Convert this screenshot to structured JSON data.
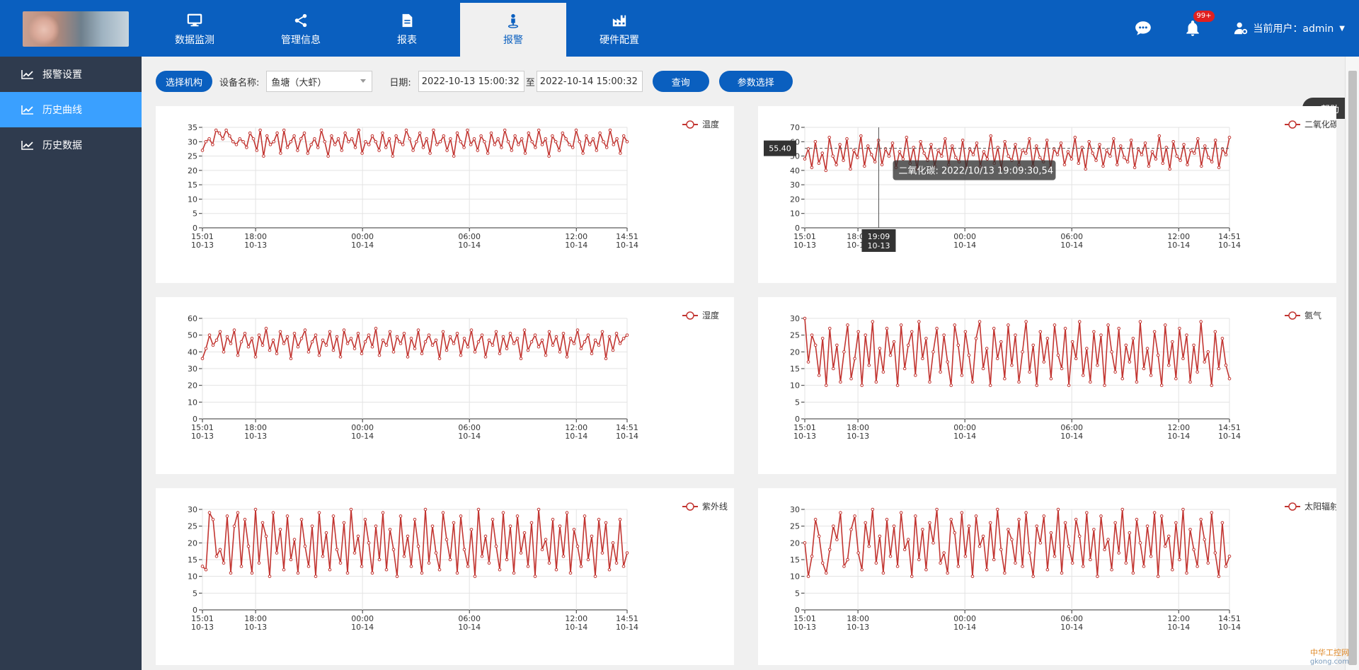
{
  "header": {
    "nav": [
      {
        "label": "数据监测",
        "icon": "monitor-icon"
      },
      {
        "label": "管理信息",
        "icon": "share-icon"
      },
      {
        "label": "报表",
        "icon": "document-icon"
      },
      {
        "label": "报警",
        "icon": "alarm-person-icon",
        "active": true
      },
      {
        "label": "硬件配置",
        "icon": "factory-icon"
      }
    ],
    "notification_badge": "99+",
    "user_label": "当前用户：admin"
  },
  "sidebar": {
    "items": [
      {
        "label": "报警设置",
        "active": false
      },
      {
        "label": "历史曲线",
        "active": true
      },
      {
        "label": "历史数据",
        "active": false
      }
    ]
  },
  "toolbar": {
    "select_org_label": "选择机构",
    "device_label": "设备名称:",
    "device_value": "鱼塘（大虾）",
    "date_label": "日期:",
    "start_date": "2022-10-13 15:00:32",
    "to_label": "至",
    "end_date": "2022-10-14 15:00:32",
    "query_label": "查询",
    "params_label": "参数选择"
  },
  "help_label": "帮助",
  "tooltip": {
    "axis_y": "55.40",
    "axis_x_time": "19:09",
    "axis_x_date": "10-13",
    "text": "二氧化碳: 2022/10/13 19:09:30,54"
  },
  "watermark": {
    "line1": "中华工控网",
    "line2": "gkong.com"
  },
  "colors": {
    "series": "#c23531",
    "primary": "#0a5fbf",
    "sidebar": "#2f3b4e",
    "sidebar_active": "#3aa0ff"
  },
  "chart_data": [
    {
      "type": "line",
      "series": [
        {
          "name": "温度"
        }
      ],
      "ylim": [
        0,
        35
      ],
      "yticks": [
        0,
        5,
        10,
        15,
        20,
        25,
        30,
        35
      ],
      "x_ticks": [
        [
          "15:01",
          "10-13"
        ],
        [
          "18:00",
          "10-13"
        ],
        [
          "00:00",
          "10-14"
        ],
        [
          "06:00",
          "10-14"
        ],
        [
          "12:00",
          "10-14"
        ],
        [
          "14:51",
          "10-14"
        ]
      ],
      "values": [
        27,
        30,
        31,
        29,
        34,
        33,
        31,
        34,
        32,
        30,
        29,
        31,
        30,
        28,
        33,
        31,
        27,
        34,
        25,
        32,
        29,
        30,
        33,
        26,
        34,
        28,
        30,
        32,
        27,
        31,
        33,
        26,
        29,
        31,
        28,
        34,
        30,
        25,
        32,
        29,
        31,
        27,
        33,
        30,
        31,
        28,
        34,
        26,
        30,
        29,
        32,
        30,
        27,
        33,
        28,
        31,
        25,
        32,
        30,
        29,
        34,
        31,
        27,
        30,
        33,
        28,
        31,
        26,
        34,
        29,
        30,
        32,
        27,
        31,
        25,
        33,
        30,
        28,
        34,
        29,
        31,
        27,
        32,
        30,
        26,
        33,
        29,
        31,
        28,
        34,
        30,
        27,
        32,
        29,
        31,
        26,
        33,
        30,
        28,
        34,
        29,
        31,
        25,
        32,
        30,
        27,
        33,
        31,
        29,
        28,
        34,
        30,
        26,
        32,
        29,
        31,
        27,
        33,
        30,
        28,
        34,
        29,
        31,
        26,
        32,
        30
      ]
    },
    {
      "type": "line",
      "series": [
        {
          "name": "二氧化碳"
        }
      ],
      "ylim": [
        0,
        70
      ],
      "yticks": [
        0,
        10,
        20,
        30,
        40,
        50,
        60,
        70
      ],
      "x_ticks": [
        [
          "15:01",
          "10-13"
        ],
        [
          "18:00",
          "10-13"
        ],
        [
          "00:00",
          "10-14"
        ],
        [
          "06:00",
          "10-14"
        ],
        [
          "12:00",
          "10-14"
        ],
        [
          "14:51",
          "10-14"
        ]
      ],
      "values": [
        48,
        55,
        42,
        60,
        45,
        52,
        40,
        63,
        50,
        44,
        58,
        47,
        62,
        41,
        54,
        49,
        64,
        43,
        57,
        51,
        46,
        61,
        44,
        55,
        50,
        59,
        42,
        53,
        48,
        63,
        45,
        56,
        41,
        60,
        52,
        47,
        58,
        43,
        54,
        50,
        62,
        44,
        57,
        49,
        46,
        61,
        42,
        55,
        51,
        59,
        43,
        53,
        48,
        64,
        45,
        56,
        41,
        60,
        50,
        47,
        58,
        44,
        54,
        52,
        62,
        43,
        57,
        49,
        46,
        61,
        42,
        55,
        51,
        59,
        44,
        53,
        48,
        63,
        45,
        56,
        41,
        60,
        52,
        47,
        58,
        43,
        54,
        50,
        62,
        44,
        57,
        49,
        46,
        61,
        42,
        55,
        51,
        59,
        43,
        53,
        48,
        64,
        45,
        56,
        41,
        60,
        50,
        47,
        58,
        44,
        54,
        52,
        62,
        43,
        57,
        49,
        46,
        61,
        42,
        55,
        51,
        63
      ]
    },
    {
      "type": "line",
      "series": [
        {
          "name": "湿度"
        }
      ],
      "ylim": [
        0,
        60
      ],
      "yticks": [
        0,
        10,
        20,
        30,
        40,
        50,
        60
      ],
      "x_ticks": [
        [
          "15:01",
          "10-13"
        ],
        [
          "18:00",
          "10-13"
        ],
        [
          "00:00",
          "10-14"
        ],
        [
          "06:00",
          "10-14"
        ],
        [
          "12:00",
          "10-14"
        ],
        [
          "14:51",
          "10-14"
        ]
      ],
      "values": [
        36,
        42,
        50,
        44,
        47,
        52,
        40,
        49,
        45,
        53,
        38,
        46,
        51,
        43,
        48,
        37,
        50,
        44,
        54,
        41,
        47,
        39,
        52,
        45,
        49,
        36,
        51,
        43,
        48,
        53,
        40,
        46,
        50,
        38,
        47,
        44,
        52,
        41,
        49,
        37,
        53,
        45,
        48,
        42,
        51,
        39,
        46,
        50,
        43,
        54,
        38,
        47,
        44,
        52,
        40,
        49,
        45,
        51,
        37,
        48,
        42,
        53,
        39,
        46,
        50,
        44,
        47,
        36,
        52,
        41,
        49,
        45,
        51,
        38,
        48,
        43,
        53,
        40,
        46,
        50,
        37,
        47,
        44,
        52,
        39,
        49,
        42,
        51,
        45,
        48,
        36,
        53,
        41,
        46,
        50,
        43,
        47,
        38,
        52,
        44,
        49,
        40,
        51,
        37,
        48,
        45,
        53,
        42,
        46,
        50,
        39,
        47,
        44,
        52,
        36,
        49,
        41,
        51,
        45,
        48,
        50
      ]
    },
    {
      "type": "line",
      "series": [
        {
          "name": "氨气"
        }
      ],
      "ylim": [
        0,
        30
      ],
      "yticks": [
        0,
        5,
        10,
        15,
        20,
        25,
        30
      ],
      "x_ticks": [
        [
          "15:01",
          "10-13"
        ],
        [
          "18:00",
          "10-13"
        ],
        [
          "00:00",
          "10-14"
        ],
        [
          "06:00",
          "10-14"
        ],
        [
          "12:00",
          "10-14"
        ],
        [
          "14:51",
          "10-14"
        ]
      ],
      "values": [
        30,
        17,
        25,
        22,
        13,
        24,
        10,
        27,
        15,
        22,
        11,
        20,
        28,
        12,
        18,
        26,
        10,
        25,
        16,
        29,
        11,
        21,
        14,
        27,
        19,
        23,
        10,
        28,
        15,
        22,
        26,
        13,
        29,
        18,
        24,
        11,
        20,
        27,
        14,
        25,
        17,
        10,
        28,
        22,
        13,
        26,
        19,
        11,
        24,
        29,
        15,
        21,
        10,
        27,
        18,
        23,
        12,
        28,
        16,
        25,
        11,
        20,
        29,
        14,
        22,
        10,
        26,
        17,
        24,
        12,
        28,
        19,
        15,
        27,
        10,
        23,
        18,
        29,
        13,
        21,
        11,
        26,
        16,
        25,
        10,
        28,
        20,
        14,
        27,
        12,
        22,
        17,
        24,
        11,
        29,
        15,
        21,
        13,
        26,
        19,
        10,
        28,
        16,
        23,
        12,
        27,
        18,
        25,
        11,
        22,
        14,
        29,
        17,
        20,
        10,
        26,
        15,
        24,
        16,
        12
      ]
    },
    {
      "type": "line",
      "series": [
        {
          "name": "紫外线"
        }
      ],
      "ylim": [
        0,
        30
      ],
      "yticks": [
        0,
        5,
        10,
        15,
        20,
        25,
        30
      ],
      "x_ticks": [
        [
          "15:01",
          "10-13"
        ],
        [
          "18:00",
          "10-13"
        ],
        [
          "00:00",
          "10-14"
        ],
        [
          "06:00",
          "10-14"
        ],
        [
          "12:00",
          "10-14"
        ],
        [
          "14:51",
          "10-14"
        ]
      ],
      "values": [
        13,
        12,
        29,
        27,
        16,
        18,
        14,
        28,
        11,
        25,
        29,
        13,
        27,
        19,
        11,
        30,
        14,
        26,
        22,
        10,
        29,
        17,
        24,
        12,
        28,
        15,
        21,
        11,
        27,
        19,
        13,
        25,
        10,
        29,
        16,
        23,
        12,
        28,
        18,
        14,
        26,
        11,
        30,
        17,
        22,
        13,
        27,
        20,
        11,
        25,
        15,
        29,
        12,
        24,
        18,
        10,
        28,
        16,
        22,
        13,
        27,
        19,
        11,
        30,
        14,
        25,
        17,
        12,
        29,
        21,
        15,
        26,
        11,
        28,
        18,
        13,
        24,
        10,
        30,
        16,
        22,
        14,
        27,
        19,
        12,
        29,
        15,
        25,
        11,
        28,
        17,
        23,
        13,
        26,
        10,
        30,
        18,
        21,
        14,
        27,
        12,
        25,
        16,
        29,
        11,
        24,
        19,
        13,
        28,
        15,
        22,
        10,
        27,
        17,
        26,
        12,
        20,
        14,
        27,
        13,
        17
      ]
    },
    {
      "type": "line",
      "series": [
        {
          "name": "太阳辐射"
        }
      ],
      "ylim": [
        0,
        30
      ],
      "yticks": [
        0,
        5,
        10,
        15,
        20,
        25,
        30
      ],
      "x_ticks": [
        [
          "15:01",
          "10-13"
        ],
        [
          "18:00",
          "10-13"
        ],
        [
          "00:00",
          "10-14"
        ],
        [
          "06:00",
          "10-14"
        ],
        [
          "12:00",
          "10-14"
        ],
        [
          "14:51",
          "10-14"
        ]
      ],
      "values": [
        20,
        10,
        16,
        27,
        22,
        14,
        11,
        18,
        25,
        21,
        29,
        13,
        15,
        24,
        28,
        17,
        12,
        26,
        19,
        30,
        14,
        22,
        11,
        27,
        16,
        25,
        13,
        29,
        18,
        21,
        10,
        28,
        15,
        24,
        12,
        26,
        20,
        30,
        14,
        17,
        11,
        27,
        23,
        13,
        29,
        16,
        25,
        10,
        28,
        19,
        22,
        12,
        26,
        15,
        30,
        18,
        11,
        24,
        21,
        14,
        27,
        13,
        29,
        17,
        10,
        25,
        20,
        28,
        12,
        23,
        16,
        30,
        11,
        26,
        19,
        14,
        27,
        22,
        13,
        29,
        15,
        24,
        10,
        28,
        18,
        21,
        12,
        26,
        17,
        30,
        14,
        23,
        11,
        27,
        20,
        13,
        25,
        16,
        29,
        10,
        28,
        19,
        22,
        12,
        26,
        15,
        30,
        11,
        24,
        18,
        13,
        27,
        21,
        14,
        29,
        17,
        10,
        26,
        13,
        16
      ]
    }
  ]
}
